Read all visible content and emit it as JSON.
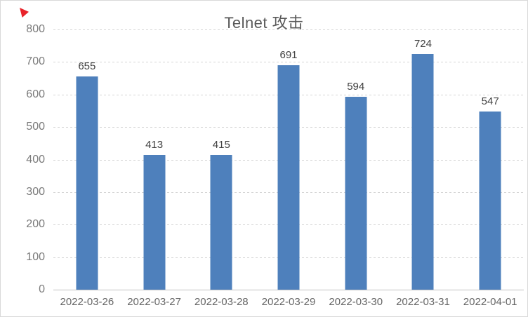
{
  "window": {
    "background": "#ffffff",
    "border_color": "#d9d9d9"
  },
  "cursor_marker": {
    "color": "#e8232a"
  },
  "chart_data": {
    "type": "bar",
    "title": "Telnet 攻击",
    "categories": [
      "2022-03-26",
      "2022-03-27",
      "2022-03-28",
      "2022-03-29",
      "2022-03-30",
      "2022-03-31",
      "2022-04-01"
    ],
    "values": [
      655,
      413,
      415,
      691,
      594,
      724,
      547
    ],
    "data_labels": [
      "655",
      "413",
      "415",
      "691",
      "594",
      "724",
      "547"
    ],
    "xlabel": "",
    "ylabel": "",
    "ylim": [
      0,
      800
    ],
    "y_ticks": [
      0,
      100,
      200,
      300,
      400,
      500,
      600,
      700,
      800
    ],
    "grid": "horizontal-dotted",
    "legend_position": "none",
    "bar_color": "#4e80bc",
    "grid_color": "#d5d5d5",
    "axis_line_color": "#c0c0c0",
    "title_color": "#595959",
    "tick_label_color": "#7a7a7a",
    "data_label_color": "#404040"
  }
}
